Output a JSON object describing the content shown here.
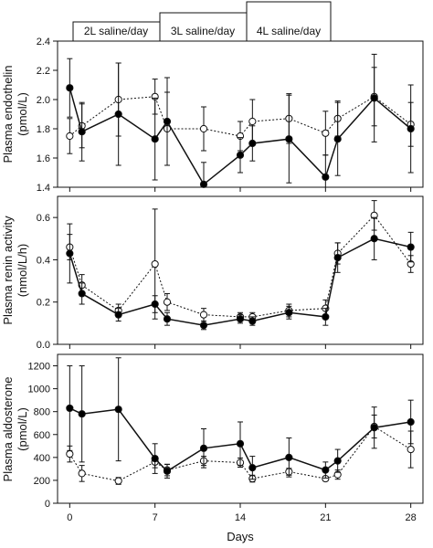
{
  "chart_data": [
    {
      "type": "line",
      "ylabel_line1": "Plasma endothelin",
      "ylabel_line2": "(pmol/L)",
      "ylim": [
        1.4,
        2.4
      ],
      "yticks": [
        "1.4",
        "1.6",
        "1.8",
        "2.0",
        "2.2",
        "2.4"
      ],
      "xlim": [
        -1,
        29
      ],
      "series": [
        {
          "style": "filled-solid",
          "x": [
            0,
            1,
            4,
            7,
            8,
            11,
            14,
            15,
            18,
            21,
            22,
            25,
            28
          ],
          "y": [
            2.08,
            1.78,
            1.9,
            1.73,
            1.85,
            1.42,
            1.62,
            1.7,
            1.73,
            1.47,
            1.73,
            2.01,
            1.8
          ],
          "err": [
            0.2,
            0.2,
            0.35,
            0.28,
            0.3,
            0.15,
            0.12,
            0.12,
            0.3,
            0.15,
            0.25,
            0.3,
            0.3
          ]
        },
        {
          "style": "open-dotted",
          "x": [
            0,
            1,
            4,
            7,
            8,
            11,
            14,
            15,
            18,
            21,
            22,
            25,
            28
          ],
          "y": [
            1.75,
            1.82,
            2.0,
            2.02,
            1.8,
            1.8,
            1.75,
            1.85,
            1.87,
            1.77,
            1.87,
            2.02,
            1.83
          ],
          "err": [
            0.12,
            0.15,
            0.25,
            0.12,
            0.25,
            0.15,
            0.1,
            0.15,
            0.17,
            0.15,
            0.12,
            0.2,
            0.15
          ]
        }
      ]
    },
    {
      "type": "line",
      "ylabel_line1": "Plasma renin activity",
      "ylabel_line2": "(nmol/L/h)",
      "ylim": [
        0.0,
        0.7
      ],
      "yticks": [
        "0.0",
        "0.2",
        "0.4",
        "0.6"
      ],
      "xlim": [
        -1,
        29
      ],
      "series": [
        {
          "style": "filled-solid",
          "x": [
            0,
            1,
            4,
            7,
            8,
            11,
            14,
            15,
            18,
            21,
            22,
            25,
            28
          ],
          "y": [
            0.43,
            0.24,
            0.14,
            0.19,
            0.12,
            0.09,
            0.12,
            0.11,
            0.15,
            0.13,
            0.41,
            0.5,
            0.46
          ],
          "err": [
            0.14,
            0.05,
            0.03,
            0.04,
            0.03,
            0.02,
            0.02,
            0.02,
            0.03,
            0.04,
            0.07,
            0.1,
            0.07
          ]
        },
        {
          "style": "open-dotted",
          "x": [
            0,
            1,
            4,
            7,
            8,
            11,
            14,
            15,
            18,
            21,
            22,
            25,
            28
          ],
          "y": [
            0.46,
            0.28,
            0.16,
            0.38,
            0.2,
            0.14,
            0.13,
            0.13,
            0.16,
            0.17,
            0.43,
            0.61,
            0.38
          ],
          "err": [
            0.06,
            0.05,
            0.03,
            0.26,
            0.04,
            0.03,
            0.02,
            0.02,
            0.03,
            0.04,
            0.05,
            0.07,
            0.04
          ]
        }
      ]
    },
    {
      "type": "line",
      "ylabel_line1": "Plasma aldosterone",
      "ylabel_line2": "(pmol/L)",
      "ylim": [
        0,
        1300
      ],
      "yticks": [
        "0",
        "200",
        "400",
        "600",
        "800",
        "1000",
        "1200"
      ],
      "xlim": [
        -1,
        29
      ],
      "xticks": [
        "0",
        "7",
        "14",
        "21",
        "28"
      ],
      "xlabel": "Days",
      "series": [
        {
          "style": "filled-solid",
          "x": [
            0,
            1,
            4,
            7,
            8,
            11,
            14,
            15,
            18,
            21,
            22,
            25,
            28
          ],
          "y": [
            830,
            780,
            820,
            390,
            280,
            480,
            520,
            310,
            400,
            290,
            370,
            660,
            710
          ],
          "err": [
            370,
            420,
            450,
            130,
            60,
            170,
            190,
            100,
            170,
            70,
            100,
            180,
            190
          ]
        },
        {
          "style": "open-dotted",
          "x": [
            0,
            1,
            4,
            7,
            8,
            11,
            14,
            15,
            18,
            21,
            22,
            25,
            28
          ],
          "y": [
            430,
            260,
            195,
            360,
            290,
            370,
            355,
            215,
            275,
            215,
            250,
            670,
            470
          ],
          "err": [
            70,
            70,
            30,
            50,
            50,
            40,
            40,
            30,
            30,
            20,
            40,
            100,
            160
          ]
        }
      ]
    }
  ],
  "phases": [
    "2L saline/day",
    "3L saline/day",
    "4L saline/day"
  ],
  "colors": {
    "ink": "#111111",
    "fill": "#000000",
    "open": "#ffffff"
  }
}
